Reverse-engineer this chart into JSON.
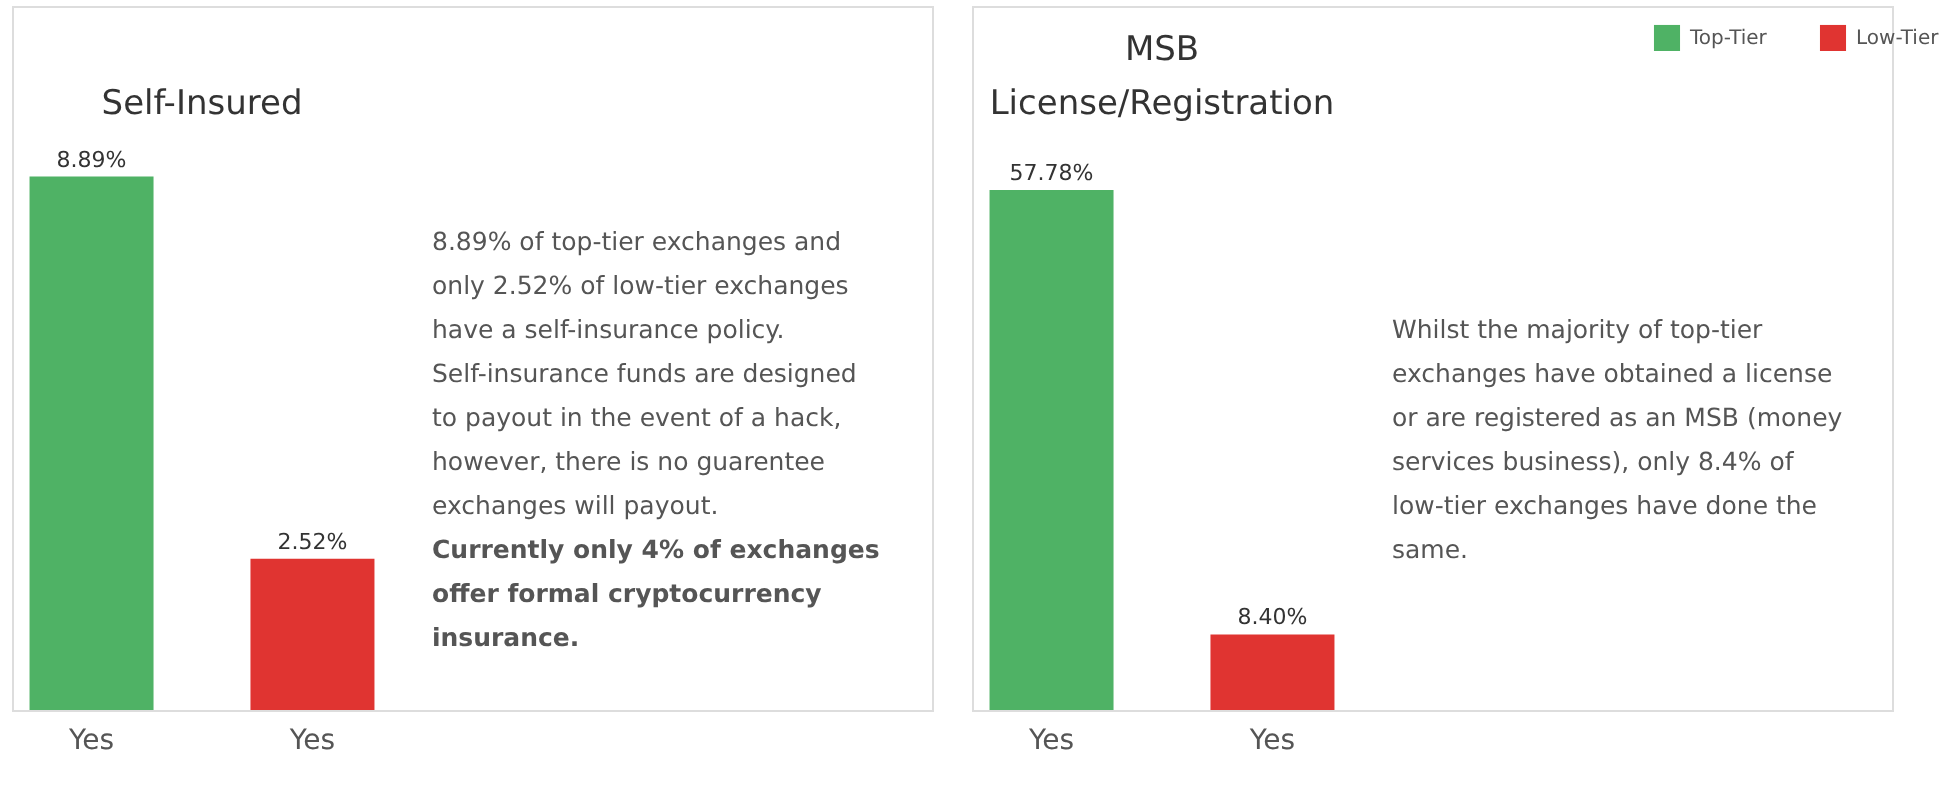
{
  "chart_data": [
    {
      "type": "bar",
      "title": "Self-Insured",
      "categories": [
        "Yes",
        "Yes"
      ],
      "series": [
        {
          "name": "Top-Tier",
          "color": "#4fb265",
          "values": [
            8.89,
            null
          ],
          "value_labels": [
            "8.89%",
            null
          ]
        },
        {
          "name": "Low-Tier",
          "color": "#e03431",
          "values": [
            null,
            2.52
          ],
          "value_labels": [
            null,
            "2.52%"
          ]
        }
      ],
      "legend": "top right",
      "annotations": [
        "8.89% of top-tier exchanges and only 2.52% of low-tier exchanges have a self-insurance policy. Self-insurance funds are designed to payout in the event of a hack, however, there is no guarentee exchanges will payout.",
        "Currently only 4% of exchanges offer formal cryptocurrency insurance."
      ]
    },
    {
      "type": "bar",
      "title": "MSB\nLicense/Registration",
      "categories": [
        "Yes",
        "Yes"
      ],
      "series": [
        {
          "name": "Top-Tier",
          "color": "#4fb265",
          "values": [
            57.78,
            null
          ],
          "value_labels": [
            "57.78%",
            null
          ]
        },
        {
          "name": "Low-Tier",
          "color": "#e03431",
          "values": [
            null,
            8.4
          ],
          "value_labels": [
            null,
            "8.40%"
          ]
        }
      ],
      "legend": "top right",
      "annotations": [
        "Whilst the majority of top-tier exchanges have obtained a license or are registered as an MSB (money services business), only 8.4% of low-tier exchanges have done the same."
      ]
    }
  ]
}
